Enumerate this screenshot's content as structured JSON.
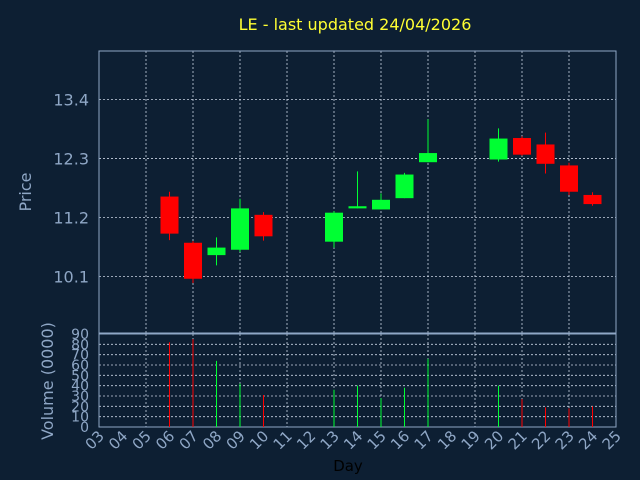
{
  "colors": {
    "background": "#0d1f33",
    "plot_border": "#8fa7c6",
    "grid": "#c9d4e3",
    "axis_text": "#8fa7c6",
    "title": "#ffff33",
    "label": "#000000",
    "up": "#00ff33",
    "down": "#ff0000"
  },
  "chart_data": {
    "type": "candlestick",
    "title": "LE - last updated 24/04/2026",
    "ylabel": "Price",
    "volume_label": "Volume (0000)",
    "xlabel": "Day",
    "grid": true,
    "x_ticks": [
      "03",
      "04",
      "05",
      "06",
      "07",
      "08",
      "09",
      "10",
      "11",
      "12",
      "13",
      "14",
      "15",
      "16",
      "17",
      "18",
      "19",
      "20",
      "21",
      "22",
      "23",
      "24",
      "25"
    ],
    "price_ticks": [
      {
        "value": 10.1,
        "label": "10.1"
      },
      {
        "value": 11.2,
        "label": "11.2"
      },
      {
        "value": 12.3,
        "label": "12.3"
      },
      {
        "value": 13.4,
        "label": "13.4"
      }
    ],
    "ylim": [
      9.05,
      14.3
    ],
    "volume_ticks": [
      0,
      10,
      20,
      30,
      40,
      50,
      60,
      70,
      80,
      90
    ],
    "volume_ylim": [
      0,
      90
    ],
    "candles": [
      {
        "day": "06",
        "open": 11.59,
        "high": 11.68,
        "low": 10.78,
        "close": 10.9,
        "volume": 82
      },
      {
        "day": "07",
        "open": 10.73,
        "high": 10.76,
        "low": 9.98,
        "close": 10.06,
        "volume": 85
      },
      {
        "day": "08",
        "open": 10.5,
        "high": 10.83,
        "low": 10.31,
        "close": 10.64,
        "volume": 64
      },
      {
        "day": "09",
        "open": 10.6,
        "high": 11.55,
        "low": 10.56,
        "close": 11.37,
        "volume": 42
      },
      {
        "day": "10",
        "open": 11.25,
        "high": 11.3,
        "low": 10.77,
        "close": 10.85,
        "volume": 31
      },
      {
        "day": "13",
        "open": 10.75,
        "high": 11.32,
        "low": 10.64,
        "close": 11.29,
        "volume": 36
      },
      {
        "day": "14",
        "open": 11.37,
        "high": 12.06,
        "low": 11.37,
        "close": 11.41,
        "volume": 40
      },
      {
        "day": "15",
        "open": 11.35,
        "high": 11.65,
        "low": 11.35,
        "close": 11.53,
        "volume": 28
      },
      {
        "day": "16",
        "open": 11.56,
        "high": 12.03,
        "low": 11.56,
        "close": 12.0,
        "volume": 38
      },
      {
        "day": "17",
        "open": 12.23,
        "high": 13.03,
        "low": 12.23,
        "close": 12.4,
        "volume": 66
      },
      {
        "day": "20",
        "open": 12.28,
        "high": 12.86,
        "low": 12.24,
        "close": 12.67,
        "volume": 40
      },
      {
        "day": "21",
        "open": 12.68,
        "high": 12.71,
        "low": 12.35,
        "close": 12.37,
        "volume": 27
      },
      {
        "day": "22",
        "open": 12.56,
        "high": 12.78,
        "low": 12.02,
        "close": 12.2,
        "volume": 19
      },
      {
        "day": "23",
        "open": 12.17,
        "high": 12.22,
        "low": 11.62,
        "close": 11.68,
        "volume": 18
      },
      {
        "day": "24",
        "open": 11.62,
        "high": 11.67,
        "low": 11.42,
        "close": 11.45,
        "volume": 20
      }
    ]
  }
}
